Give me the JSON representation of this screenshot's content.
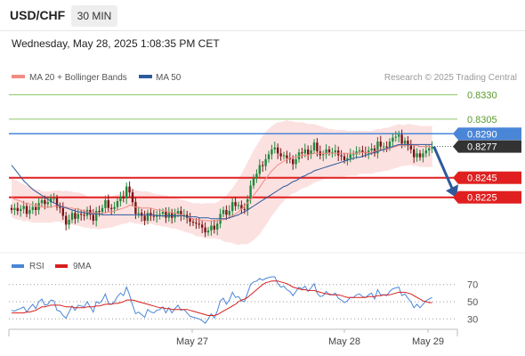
{
  "header": {
    "symbol": "USD/CHF",
    "timeframe": "30 MIN",
    "datetime": "Wednesday, May 28, 2025 1:08:35 PM CET"
  },
  "main_chart": {
    "legend": [
      {
        "label": "MA 20 + Bollinger Bands",
        "color": "#f08c84"
      },
      {
        "label": "MA 50",
        "color": "#2e5a9c"
      }
    ],
    "credit": "Research © 2025 Trading Central",
    "levels": [
      {
        "value": 0.833,
        "label": "0.8330",
        "kind": "target",
        "color": "#8cc96a",
        "text_color": "#5a9a2e"
      },
      {
        "value": 0.8305,
        "label": "0.8305",
        "kind": "target",
        "color": "#8cc96a",
        "text_color": "#5a9a2e"
      },
      {
        "value": 0.829,
        "label": "0.8290",
        "kind": "pivot",
        "color": "#4a86d8",
        "text_color": "#ffffff"
      },
      {
        "value": 0.8277,
        "label": "0.8277",
        "kind": "last",
        "color": "#333333",
        "text_color": "#ffffff"
      },
      {
        "value": 0.8245,
        "label": "0.8245",
        "kind": "support",
        "color": "#e02020",
        "text_color": "#ffffff"
      },
      {
        "value": 0.8225,
        "label": "0.8225",
        "kind": "support",
        "color": "#e02020",
        "text_color": "#ffffff"
      }
    ],
    "x_labels": [
      "May 27",
      "May 28",
      "May 29"
    ]
  },
  "chart_data": {
    "type": "candlestick",
    "bar_interval": "30 MIN",
    "y_range": [
      0.817,
      0.8345
    ],
    "close": [
      0.8212,
      0.8214,
      0.8211,
      0.8213,
      0.8216,
      0.8208,
      0.8212,
      0.8215,
      0.8212,
      0.8219,
      0.8222,
      0.8218,
      0.822,
      0.8224,
      0.8224,
      0.8215,
      0.8214,
      0.8206,
      0.8197,
      0.8202,
      0.8209,
      0.8203,
      0.8208,
      0.8207,
      0.8206,
      0.8212,
      0.8207,
      0.8201,
      0.8211,
      0.821,
      0.8214,
      0.8222,
      0.8214,
      0.8213,
      0.8215,
      0.8221,
      0.8226,
      0.8224,
      0.8236,
      0.823,
      0.822,
      0.8208,
      0.8209,
      0.8206,
      0.8201,
      0.8209,
      0.8206,
      0.8205,
      0.8207,
      0.8208,
      0.821,
      0.8204,
      0.8209,
      0.8204,
      0.8208,
      0.8211,
      0.8206,
      0.8207,
      0.8204,
      0.82,
      0.8199,
      0.8198,
      0.8197,
      0.8194,
      0.8189,
      0.8191,
      0.8196,
      0.8192,
      0.8198,
      0.8208,
      0.8212,
      0.8207,
      0.8211,
      0.822,
      0.8216,
      0.8217,
      0.8213,
      0.8212,
      0.8223,
      0.8237,
      0.8245,
      0.8249,
      0.8258,
      0.8257,
      0.8264,
      0.8269,
      0.8274,
      0.8276,
      0.827,
      0.8267,
      0.8268,
      0.8265,
      0.8264,
      0.8259,
      0.8264,
      0.8271,
      0.827,
      0.8274,
      0.8269,
      0.8273,
      0.8281,
      0.8272,
      0.8268,
      0.8269,
      0.8274,
      0.8271,
      0.8271,
      0.8273,
      0.8268,
      0.8267,
      0.8263,
      0.8265,
      0.8269,
      0.8269,
      0.8272,
      0.8273,
      0.8271,
      0.827,
      0.8273,
      0.8275,
      0.827,
      0.8282,
      0.8277,
      0.8277,
      0.8276,
      0.8282,
      0.8286,
      0.8287,
      0.8289,
      0.828,
      0.8283,
      0.8278,
      0.8274,
      0.8266,
      0.827,
      0.8266,
      0.827,
      0.8273,
      0.8275,
      0.8277
    ],
    "ma20": [
      0.8225,
      0.8223,
      0.8222,
      0.8221,
      0.8219,
      0.8219,
      0.8218,
      0.8217,
      0.8216,
      0.8216,
      0.8215,
      0.8215,
      0.8215,
      0.8215,
      0.8216,
      0.8216,
      0.8216,
      0.8215,
      0.8215,
      0.8214,
      0.8214,
      0.8213,
      0.8213,
      0.8212,
      0.8211,
      0.821,
      0.8209,
      0.8209,
      0.8209,
      0.8208,
      0.8209,
      0.8209,
      0.821,
      0.821,
      0.8211,
      0.8212,
      0.8213,
      0.8214,
      0.8215,
      0.8217,
      0.8216,
      0.8215,
      0.8215,
      0.8214,
      0.8214,
      0.8214,
      0.8214,
      0.8213,
      0.8212,
      0.8212,
      0.8211,
      0.8211,
      0.821,
      0.8209,
      0.8209,
      0.8208,
      0.8207,
      0.8206,
      0.8205,
      0.8204,
      0.8203,
      0.8202,
      0.8202,
      0.8201,
      0.8201,
      0.8201,
      0.8201,
      0.8201,
      0.8201,
      0.8202,
      0.8202,
      0.8203,
      0.8205,
      0.8206,
      0.8208,
      0.821,
      0.8213,
      0.8216,
      0.8219,
      0.8223,
      0.8227,
      0.8231,
      0.8235,
      0.824,
      0.8244,
      0.8248,
      0.8252,
      0.8255,
      0.8258,
      0.826,
      0.8262,
      0.8264,
      0.8265,
      0.8266,
      0.8266,
      0.8267,
      0.8268,
      0.8268,
      0.8268,
      0.8269,
      0.827,
      0.827,
      0.827,
      0.827,
      0.827,
      0.827,
      0.827,
      0.827,
      0.827,
      0.827,
      0.827,
      0.827,
      0.827,
      0.827,
      0.827,
      0.8271,
      0.8271,
      0.8271,
      0.8271,
      0.8271,
      0.8272,
      0.8273,
      0.8273,
      0.8274,
      0.8274,
      0.8275,
      0.8276,
      0.8277,
      0.8278,
      0.8278,
      0.8278,
      0.8279,
      0.8279,
      0.8278,
      0.8278,
      0.8277,
      0.8277,
      0.8277,
      0.8277,
      0.8277
    ],
    "bb_width": [
      0.002,
      0.002,
      0.002,
      0.0019,
      0.0019,
      0.0018,
      0.0018,
      0.0018,
      0.0017,
      0.0017,
      0.0016,
      0.0016,
      0.0016,
      0.0016,
      0.0016,
      0.0016,
      0.0016,
      0.0016,
      0.0017,
      0.0017,
      0.0017,
      0.0017,
      0.0017,
      0.0017,
      0.0017,
      0.0016,
      0.0016,
      0.0016,
      0.0016,
      0.0016,
      0.0016,
      0.0016,
      0.0016,
      0.0016,
      0.0016,
      0.0016,
      0.0016,
      0.0016,
      0.0017,
      0.0017,
      0.0017,
      0.0017,
      0.0017,
      0.0017,
      0.0017,
      0.0017,
      0.0016,
      0.0016,
      0.0016,
      0.0016,
      0.0016,
      0.0016,
      0.0016,
      0.0016,
      0.0016,
      0.0016,
      0.0016,
      0.0016,
      0.0016,
      0.0016,
      0.0016,
      0.0017,
      0.0017,
      0.0017,
      0.0018,
      0.0018,
      0.0018,
      0.0018,
      0.0019,
      0.002,
      0.0022,
      0.0024,
      0.0026,
      0.0028,
      0.0031,
      0.0034,
      0.0036,
      0.0039,
      0.0042,
      0.0044,
      0.0046,
      0.0047,
      0.0048,
      0.0048,
      0.0048,
      0.0047,
      0.0046,
      0.0045,
      0.0044,
      0.0042,
      0.0041,
      0.004,
      0.0038,
      0.0037,
      0.0036,
      0.0035,
      0.0034,
      0.0033,
      0.0032,
      0.0031,
      0.003,
      0.0029,
      0.0028,
      0.0027,
      0.0026,
      0.0025,
      0.0025,
      0.0024,
      0.0024,
      0.0024,
      0.0024,
      0.0023,
      0.0023,
      0.0023,
      0.0023,
      0.0022,
      0.0022,
      0.0022,
      0.0022,
      0.0022,
      0.0022,
      0.0022,
      0.0022,
      0.0022,
      0.0022,
      0.0022,
      0.0022,
      0.0022,
      0.0022,
      0.0021,
      0.0021,
      0.0021,
      0.0021,
      0.0021,
      0.0021,
      0.0021,
      0.0021,
      0.0021,
      0.0021,
      0.0021
    ],
    "ma50": [
      0.8258,
      0.8254,
      0.825,
      0.8246,
      0.8242,
      0.8239,
      0.8236,
      0.8233,
      0.8231,
      0.8229,
      0.8227,
      0.8225,
      0.8223,
      0.8221,
      0.8219,
      0.8218,
      0.8216,
      0.8215,
      0.8214,
      0.8213,
      0.8212,
      0.8211,
      0.821,
      0.821,
      0.8209,
      0.8209,
      0.8208,
      0.8208,
      0.8208,
      0.8208,
      0.8207,
      0.8207,
      0.8207,
      0.8207,
      0.8207,
      0.8207,
      0.8207,
      0.8207,
      0.8207,
      0.8207,
      0.8207,
      0.8207,
      0.8207,
      0.8207,
      0.8207,
      0.8207,
      0.8207,
      0.8207,
      0.8206,
      0.8206,
      0.8206,
      0.8206,
      0.8206,
      0.8206,
      0.8206,
      0.8206,
      0.8206,
      0.8206,
      0.8205,
      0.8205,
      0.8205,
      0.8205,
      0.8204,
      0.8204,
      0.8204,
      0.8204,
      0.8203,
      0.8203,
      0.8203,
      0.8203,
      0.8203,
      0.8203,
      0.8204,
      0.8205,
      0.8206,
      0.8207,
      0.8209,
      0.821,
      0.8212,
      0.8214,
      0.8216,
      0.8218,
      0.822,
      0.8222,
      0.8224,
      0.8226,
      0.8228,
      0.823,
      0.8232,
      0.8234,
      0.8236,
      0.8237,
      0.8239,
      0.8241,
      0.8242,
      0.8244,
      0.8246,
      0.8247,
      0.8249,
      0.825,
      0.8252,
      0.8253,
      0.8254,
      0.8255,
      0.8256,
      0.8257,
      0.8258,
      0.8259,
      0.826,
      0.8261,
      0.8262,
      0.8263,
      0.8264,
      0.8265,
      0.8266,
      0.8266,
      0.8267,
      0.8268,
      0.8269,
      0.827,
      0.8271,
      0.8272,
      0.8273,
      0.8274,
      0.8275,
      0.8276,
      0.8277,
      0.8278,
      0.8279,
      0.8279,
      0.8279,
      0.8279,
      0.8279,
      0.8279,
      0.8279,
      0.8279,
      0.8279,
      0.8279,
      0.8279,
      0.8279
    ],
    "rsi": [
      40,
      39,
      41,
      42,
      44,
      38,
      43,
      47,
      42,
      50,
      53,
      46,
      47,
      52,
      51,
      40,
      39,
      34,
      31,
      38,
      45,
      40,
      46,
      45,
      44,
      50,
      44,
      38,
      50,
      48,
      52,
      59,
      48,
      47,
      50,
      56,
      60,
      57,
      67,
      58,
      46,
      36,
      38,
      35,
      32,
      41,
      38,
      37,
      40,
      41,
      44,
      37,
      43,
      37,
      42,
      46,
      40,
      41,
      37,
      33,
      32,
      31,
      30,
      28,
      25,
      30,
      36,
      31,
      39,
      51,
      54,
      47,
      52,
      61,
      55,
      56,
      51,
      50,
      60,
      70,
      73,
      74,
      77,
      75,
      77,
      78,
      79,
      79,
      71,
      67,
      68,
      64,
      62,
      57,
      62,
      67,
      65,
      68,
      62,
      66,
      71,
      60,
      56,
      57,
      62,
      58,
      58,
      60,
      54,
      52,
      49,
      51,
      55,
      55,
      58,
      59,
      56,
      55,
      58,
      60,
      53,
      64,
      58,
      58,
      57,
      62,
      65,
      66,
      67,
      57,
      59,
      54,
      50,
      43,
      47,
      43,
      47,
      51,
      53,
      55
    ],
    "rsi_ma": [
      37,
      37,
      37,
      37,
      37,
      38,
      38,
      39,
      40,
      42,
      44,
      44,
      45,
      46,
      46,
      46,
      46,
      45,
      44,
      44,
      44,
      43,
      43,
      43,
      43,
      44,
      44,
      44,
      45,
      45,
      46,
      47,
      47,
      47,
      48,
      48,
      49,
      50,
      52,
      52,
      52,
      51,
      50,
      49,
      48,
      47,
      46,
      45,
      44,
      43,
      43,
      42,
      42,
      41,
      41,
      41,
      41,
      41,
      41,
      40,
      39,
      38,
      37,
      36,
      35,
      34,
      34,
      34,
      35,
      37,
      39,
      41,
      43,
      45,
      47,
      50,
      52,
      53,
      55,
      58,
      61,
      64,
      67,
      70,
      72,
      73,
      74,
      74,
      74,
      73,
      72,
      71,
      69,
      67,
      66,
      65,
      64,
      64,
      63,
      63,
      63,
      62,
      61,
      60,
      59,
      59,
      58,
      58,
      58,
      57,
      56,
      55,
      55,
      55,
      55,
      55,
      55,
      55,
      56,
      56,
      56,
      57,
      57,
      58,
      58,
      58,
      59,
      60,
      61,
      61,
      61,
      60,
      59,
      57,
      55,
      53,
      51,
      50,
      49,
      49
    ],
    "forecast": {
      "from": 0.8277,
      "to": 0.823
    },
    "rsi_panel": {
      "legend": [
        {
          "label": "RSI",
          "color": "#4a86d8"
        },
        {
          "label": "9MA",
          "color": "#d81e1e"
        }
      ],
      "y_ticks": [
        70,
        50,
        30
      ],
      "y_range": [
        20,
        80
      ]
    }
  }
}
